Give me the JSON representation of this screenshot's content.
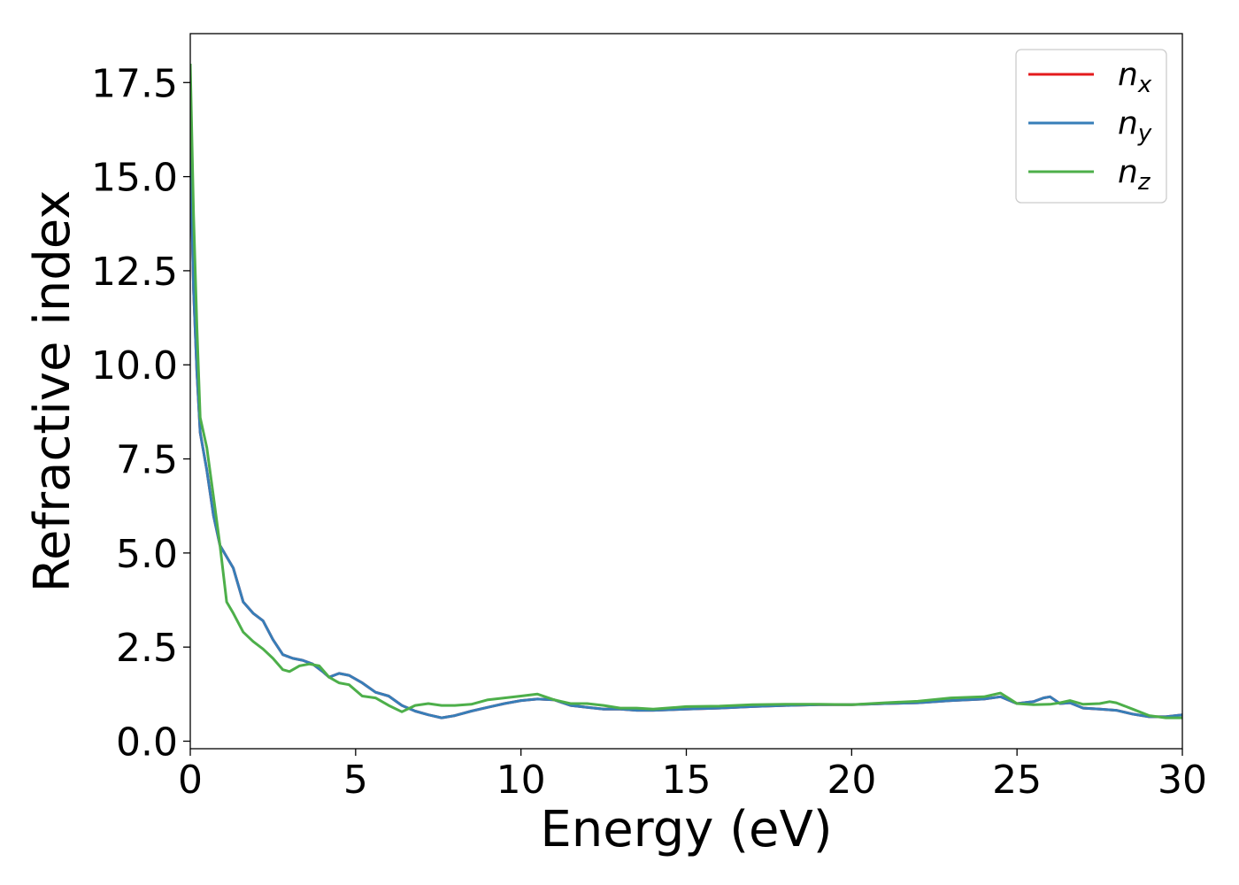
{
  "chart_data": {
    "type": "line",
    "xlabel": "Energy (eV)",
    "ylabel": "Refractive index",
    "xlim": [
      0,
      30
    ],
    "ylim": [
      -0.2,
      18.8
    ],
    "xticks": [
      0,
      5,
      10,
      15,
      20,
      25,
      30
    ],
    "xtick_labels": [
      "0",
      "5",
      "10",
      "15",
      "20",
      "25",
      "30"
    ],
    "yticks": [
      0,
      2.5,
      5,
      7.5,
      10,
      12.5,
      15,
      17.5
    ],
    "ytick_labels": [
      "0.0",
      "2.5",
      "5.0",
      "7.5",
      "10.0",
      "12.5",
      "15.0",
      "17.5"
    ],
    "grid": false,
    "legend_position": "top-right",
    "series": [
      {
        "name": "n",
        "subscript": "x",
        "color": "#e41a1c",
        "x": [
          0,
          0.1,
          0.2,
          0.3,
          0.5,
          0.7,
          0.9,
          1.1,
          1.3,
          1.6,
          1.9,
          2.2,
          2.5,
          2.8,
          3.1,
          3.4,
          3.7,
          4.0,
          4.2,
          4.5,
          4.8,
          5.2,
          5.6,
          6.0,
          6.4,
          6.8,
          7.2,
          7.6,
          8.0,
          8.5,
          9.0,
          9.5,
          10.0,
          10.5,
          11.0,
          11.5,
          12.0,
          12.5,
          13.0,
          13.5,
          14.0,
          15.0,
          16.0,
          17.0,
          18.0,
          19.0,
          20.0,
          21.0,
          22.0,
          23.0,
          24.0,
          24.5,
          25.0,
          25.5,
          25.8,
          26.0,
          26.3,
          26.6,
          27.0,
          27.5,
          28.0,
          28.5,
          29.0,
          29.5,
          30.0
        ],
        "y": [
          15.8,
          12.0,
          9.8,
          8.2,
          7.2,
          6.0,
          5.2,
          4.9,
          4.6,
          3.7,
          3.4,
          3.2,
          2.7,
          2.3,
          2.2,
          2.15,
          2.05,
          1.85,
          1.7,
          1.8,
          1.75,
          1.55,
          1.3,
          1.2,
          0.95,
          0.8,
          0.7,
          0.62,
          0.68,
          0.8,
          0.9,
          1.0,
          1.08,
          1.12,
          1.1,
          0.95,
          0.9,
          0.85,
          0.85,
          0.82,
          0.82,
          0.85,
          0.88,
          0.92,
          0.95,
          0.97,
          0.97,
          1.0,
          1.02,
          1.08,
          1.12,
          1.18,
          1.0,
          1.05,
          1.15,
          1.18,
          1.0,
          1.02,
          0.88,
          0.85,
          0.82,
          0.72,
          0.65,
          0.65,
          0.7
        ]
      },
      {
        "name": "n",
        "subscript": "y",
        "color": "#377eb8",
        "x": [
          0,
          0.1,
          0.2,
          0.3,
          0.5,
          0.7,
          0.9,
          1.1,
          1.3,
          1.6,
          1.9,
          2.2,
          2.5,
          2.8,
          3.1,
          3.4,
          3.7,
          4.0,
          4.2,
          4.5,
          4.8,
          5.2,
          5.6,
          6.0,
          6.4,
          6.8,
          7.2,
          7.6,
          8.0,
          8.5,
          9.0,
          9.5,
          10.0,
          10.5,
          11.0,
          11.5,
          12.0,
          12.5,
          13.0,
          13.5,
          14.0,
          15.0,
          16.0,
          17.0,
          18.0,
          19.0,
          20.0,
          21.0,
          22.0,
          23.0,
          24.0,
          24.5,
          25.0,
          25.5,
          25.8,
          26.0,
          26.3,
          26.6,
          27.0,
          27.5,
          28.0,
          28.5,
          29.0,
          29.5,
          30.0
        ],
        "y": [
          15.8,
          12.0,
          9.8,
          8.2,
          7.2,
          6.0,
          5.2,
          4.9,
          4.6,
          3.7,
          3.4,
          3.2,
          2.7,
          2.3,
          2.2,
          2.15,
          2.05,
          1.85,
          1.7,
          1.8,
          1.75,
          1.55,
          1.3,
          1.2,
          0.95,
          0.8,
          0.7,
          0.62,
          0.68,
          0.8,
          0.9,
          1.0,
          1.08,
          1.12,
          1.1,
          0.95,
          0.9,
          0.85,
          0.85,
          0.82,
          0.82,
          0.85,
          0.88,
          0.92,
          0.95,
          0.97,
          0.97,
          1.0,
          1.02,
          1.08,
          1.12,
          1.18,
          1.0,
          1.05,
          1.15,
          1.18,
          1.0,
          1.02,
          0.88,
          0.85,
          0.82,
          0.72,
          0.65,
          0.65,
          0.7
        ]
      },
      {
        "name": "n",
        "subscript": "z",
        "color": "#4daf4a",
        "x": [
          0,
          0.1,
          0.2,
          0.3,
          0.5,
          0.7,
          0.9,
          1.1,
          1.3,
          1.6,
          1.9,
          2.2,
          2.5,
          2.8,
          3.0,
          3.3,
          3.6,
          3.9,
          4.2,
          4.5,
          4.8,
          5.2,
          5.6,
          6.0,
          6.4,
          6.8,
          7.2,
          7.6,
          8.0,
          8.5,
          9.0,
          9.5,
          10.0,
          10.5,
          11.0,
          11.5,
          12.0,
          12.5,
          13.0,
          13.5,
          14.0,
          15.0,
          16.0,
          17.0,
          18.0,
          19.0,
          20.0,
          21.0,
          22.0,
          23.0,
          24.0,
          24.5,
          25.0,
          25.5,
          26.0,
          26.3,
          26.6,
          27.0,
          27.5,
          27.8,
          28.0,
          28.5,
          29.0,
          29.5,
          30.0
        ],
        "y": [
          18.0,
          14.0,
          11.0,
          8.6,
          7.8,
          6.5,
          5.2,
          3.7,
          3.4,
          2.9,
          2.65,
          2.45,
          2.2,
          1.9,
          1.85,
          2.0,
          2.05,
          2.0,
          1.7,
          1.55,
          1.5,
          1.2,
          1.15,
          0.95,
          0.78,
          0.95,
          1.0,
          0.95,
          0.95,
          0.98,
          1.1,
          1.15,
          1.2,
          1.25,
          1.1,
          1.0,
          1.0,
          0.95,
          0.88,
          0.88,
          0.85,
          0.92,
          0.93,
          0.97,
          0.98,
          0.98,
          0.97,
          1.02,
          1.06,
          1.15,
          1.18,
          1.28,
          1.0,
          0.97,
          0.98,
          1.02,
          1.08,
          0.98,
          1.0,
          1.05,
          1.02,
          0.85,
          0.68,
          0.62,
          0.62
        ]
      }
    ]
  }
}
